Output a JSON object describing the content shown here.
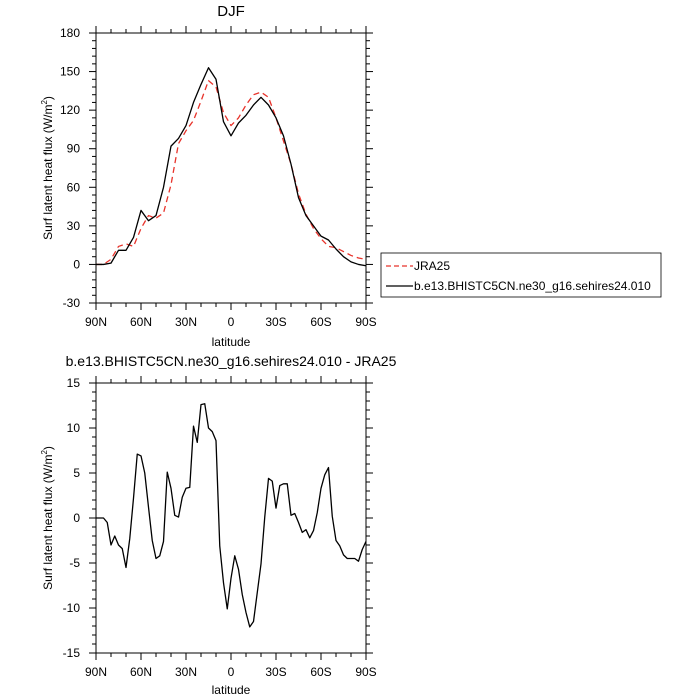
{
  "chart_data": [
    {
      "type": "line",
      "title": "DJF",
      "xlabel": "latitude",
      "ylabel": "Surf latent heat flux (W/m²)",
      "xlim": [
        90,
        -90
      ],
      "ylim": [
        -30,
        180
      ],
      "x_ticks": [
        {
          "value": 90,
          "label": "90N"
        },
        {
          "value": 60,
          "label": "60N"
        },
        {
          "value": 30,
          "label": "30N"
        },
        {
          "value": 0,
          "label": "0"
        },
        {
          "value": -30,
          "label": "30S"
        },
        {
          "value": -60,
          "label": "60S"
        },
        {
          "value": -90,
          "label": "90S"
        }
      ],
      "y_ticks": [
        -30,
        0,
        30,
        60,
        90,
        120,
        150,
        180
      ],
      "legend": {
        "placement": "right",
        "entries": [
          {
            "label": "JRA25",
            "color": "#e8332b",
            "dash": true
          },
          {
            "label": "b.e13.BHISTC5CN.ne30_g16.sehires24.010",
            "color": "#000000",
            "dash": false
          }
        ]
      },
      "series": [
        {
          "name": "JRA25",
          "color": "#e8332b",
          "dash": true,
          "x": [
            90,
            85,
            80,
            75,
            70,
            65,
            60,
            55,
            50,
            45,
            40,
            35,
            30,
            25,
            20,
            15,
            10,
            5,
            0,
            -5,
            -10,
            -15,
            -20,
            -25,
            -30,
            -35,
            -40,
            -45,
            -50,
            -55,
            -60,
            -65,
            -70,
            -75,
            -80,
            -85,
            -90
          ],
          "values": [
            0,
            0,
            4,
            14,
            16,
            14,
            28,
            38,
            36,
            40,
            62,
            94,
            104,
            112,
            127,
            143,
            138,
            118,
            108,
            114,
            124,
            132,
            134,
            130,
            114,
            96,
            78,
            55,
            39,
            28,
            20,
            14,
            13,
            10,
            7,
            5,
            4
          ]
        },
        {
          "name": "b.e13.BHISTC5CN.ne30_g16.sehires24.010",
          "color": "#000000",
          "dash": false,
          "x": [
            90,
            85,
            80,
            75,
            70,
            65,
            60,
            55,
            50,
            45,
            40,
            35,
            30,
            25,
            20,
            15,
            10,
            5,
            0,
            -5,
            -10,
            -15,
            -20,
            -25,
            -30,
            -35,
            -40,
            -45,
            -50,
            -55,
            -60,
            -65,
            -70,
            -75,
            -80,
            -85,
            -90
          ],
          "values": [
            0,
            0,
            1,
            11,
            11,
            21,
            42,
            34,
            38,
            60,
            92,
            98,
            108,
            126,
            140,
            153,
            144,
            111,
            100,
            110,
            116,
            124,
            130,
            124,
            114,
            100,
            78,
            52,
            38,
            30,
            22,
            19,
            12,
            6,
            2,
            0,
            -1
          ]
        }
      ]
    },
    {
      "type": "line",
      "title": "b.e13.BHISTC5CN.ne30_g16.sehires24.010 - JRA25",
      "xlabel": "latitude",
      "ylabel": "Surf latent heat flux (W/m²)",
      "xlim": [
        90,
        -90
      ],
      "ylim": [
        -15,
        15
      ],
      "x_ticks": [
        {
          "value": 90,
          "label": "90N"
        },
        {
          "value": 60,
          "label": "60N"
        },
        {
          "value": 30,
          "label": "30N"
        },
        {
          "value": 0,
          "label": "0"
        },
        {
          "value": -30,
          "label": "30S"
        },
        {
          "value": -60,
          "label": "60S"
        },
        {
          "value": -90,
          "label": "90S"
        }
      ],
      "y_ticks": [
        -15,
        -10,
        -5,
        0,
        5,
        10,
        15
      ],
      "series": [
        {
          "color": "#000000",
          "dash": false,
          "x": [
            90,
            87.5,
            85,
            82.5,
            80,
            77.5,
            75,
            72.5,
            70,
            67.5,
            65,
            62.5,
            60,
            57.5,
            55,
            52.5,
            50,
            47.5,
            45,
            42.5,
            40,
            37.5,
            35,
            32.5,
            30,
            27.5,
            25,
            22.5,
            20,
            17.5,
            15,
            12.5,
            10,
            7.5,
            5,
            2.5,
            0,
            -2.5,
            -5,
            -7.5,
            -10,
            -12.5,
            -15,
            -17.5,
            -20,
            -22.5,
            -25,
            -27.5,
            -30,
            -32.5,
            -35,
            -37.5,
            -40,
            -42.5,
            -45,
            -47.5,
            -50,
            -52.5,
            -55,
            -57.5,
            -60,
            -62.5,
            -65,
            -67.5,
            -70,
            -72.5,
            -75,
            -77.5,
            -80,
            -82.5,
            -85,
            -87.5,
            -90
          ],
          "values": [
            0,
            0,
            0,
            -0.5,
            -3,
            -2,
            -3,
            -3.4,
            -5.5,
            -2.3,
            2.2,
            7.1,
            6.9,
            5,
            1.2,
            -2.5,
            -4.5,
            -4.2,
            -2.6,
            5.1,
            3.3,
            0.3,
            0.1,
            2.3,
            3.3,
            3.4,
            10.2,
            8.4,
            12.6,
            12.7,
            10,
            9.6,
            8.6,
            -3.1,
            -7.2,
            -10.1,
            -6.7,
            -4.2,
            -5.7,
            -8.5,
            -10.5,
            -12.1,
            -11.5,
            -8.3,
            -5.1,
            0.1,
            4.4,
            4.1,
            1.1,
            3.6,
            3.8,
            3.8,
            0.3,
            0.5,
            -0.5,
            -1.6,
            -1.3,
            -2.2,
            -1.4,
            0.6,
            3.3,
            4.8,
            5.6,
            0.2,
            -2.5,
            -3.1,
            -4.1,
            -4.5,
            -4.5,
            -4.5,
            -4.8,
            -3.5,
            -2.6
          ]
        }
      ]
    }
  ]
}
